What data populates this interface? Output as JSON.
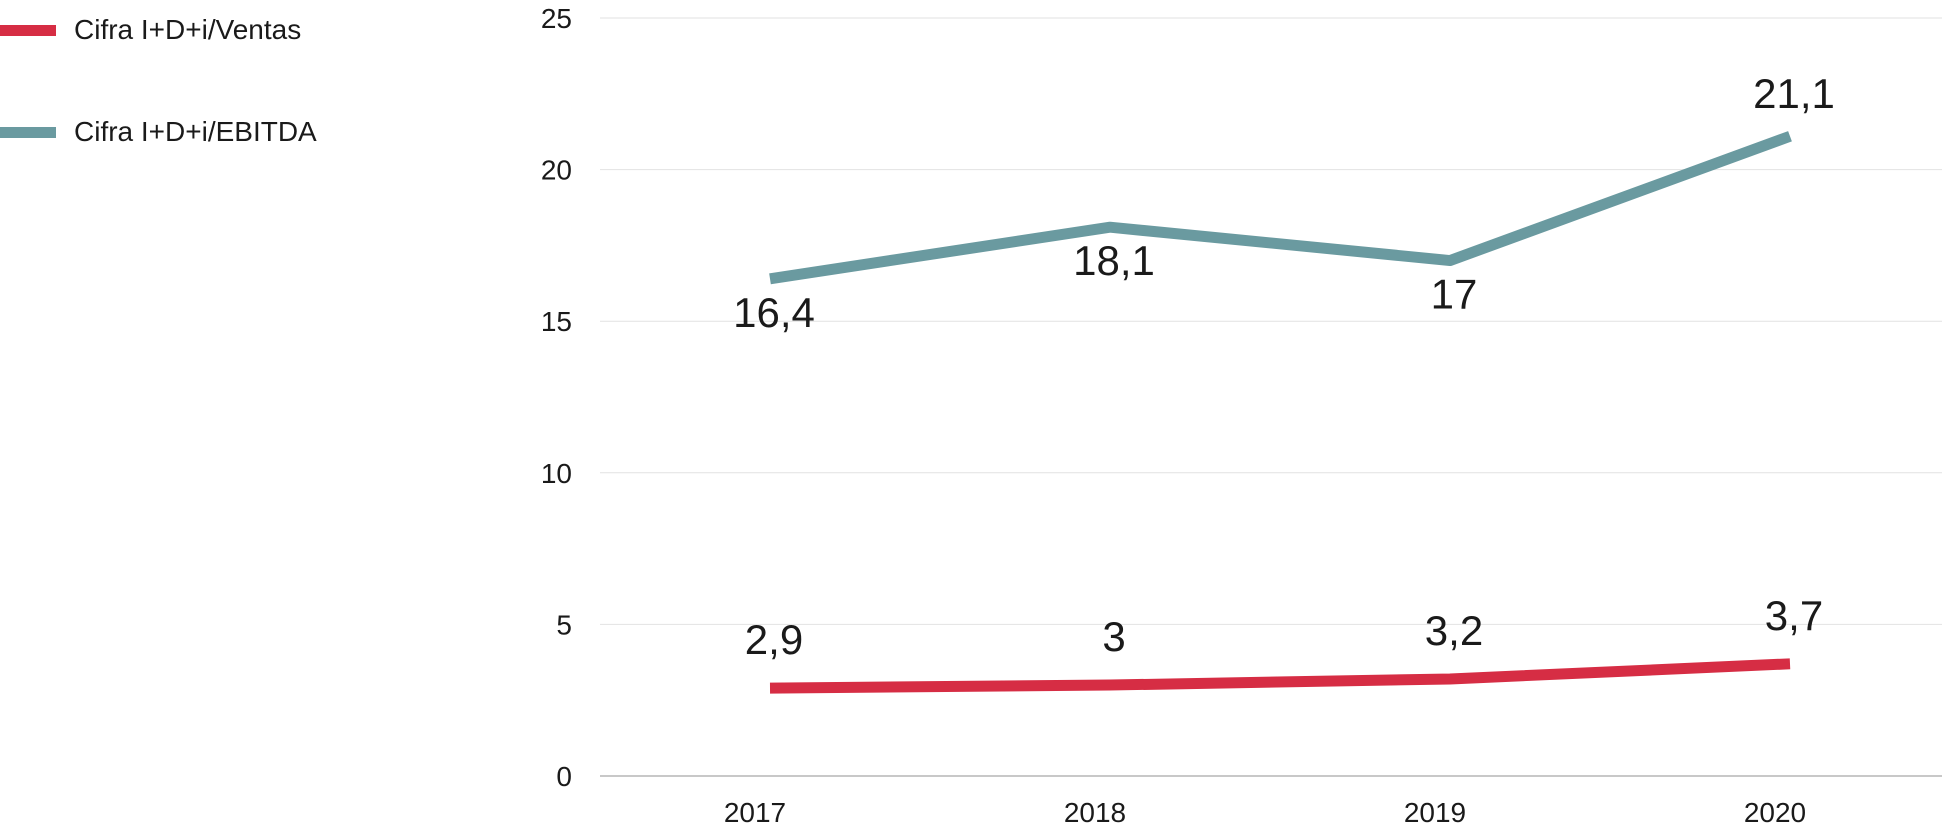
{
  "chart_data": {
    "type": "line",
    "categories": [
      "2017",
      "2018",
      "2019",
      "2020"
    ],
    "series": [
      {
        "name": "Cifra I+D+i/Ventas",
        "color": "#d62d44",
        "values": [
          2.9,
          3,
          3.2,
          3.7
        ],
        "labels": [
          "2,9",
          "3",
          "3,2",
          "3,7"
        ]
      },
      {
        "name": "Cifra I+D+i/EBITDA",
        "color": "#6a9aa0",
        "values": [
          16.4,
          18.1,
          17,
          21.1
        ],
        "labels": [
          "16,4",
          "18,1",
          "17",
          "21,1"
        ]
      }
    ],
    "y_ticks": [
      "0",
      "5",
      "10",
      "15",
      "20",
      "25"
    ],
    "ylim": [
      0,
      25
    ],
    "grid": true,
    "legend_position": "top-left",
    "title": "",
    "xlabel": "",
    "ylabel": ""
  }
}
